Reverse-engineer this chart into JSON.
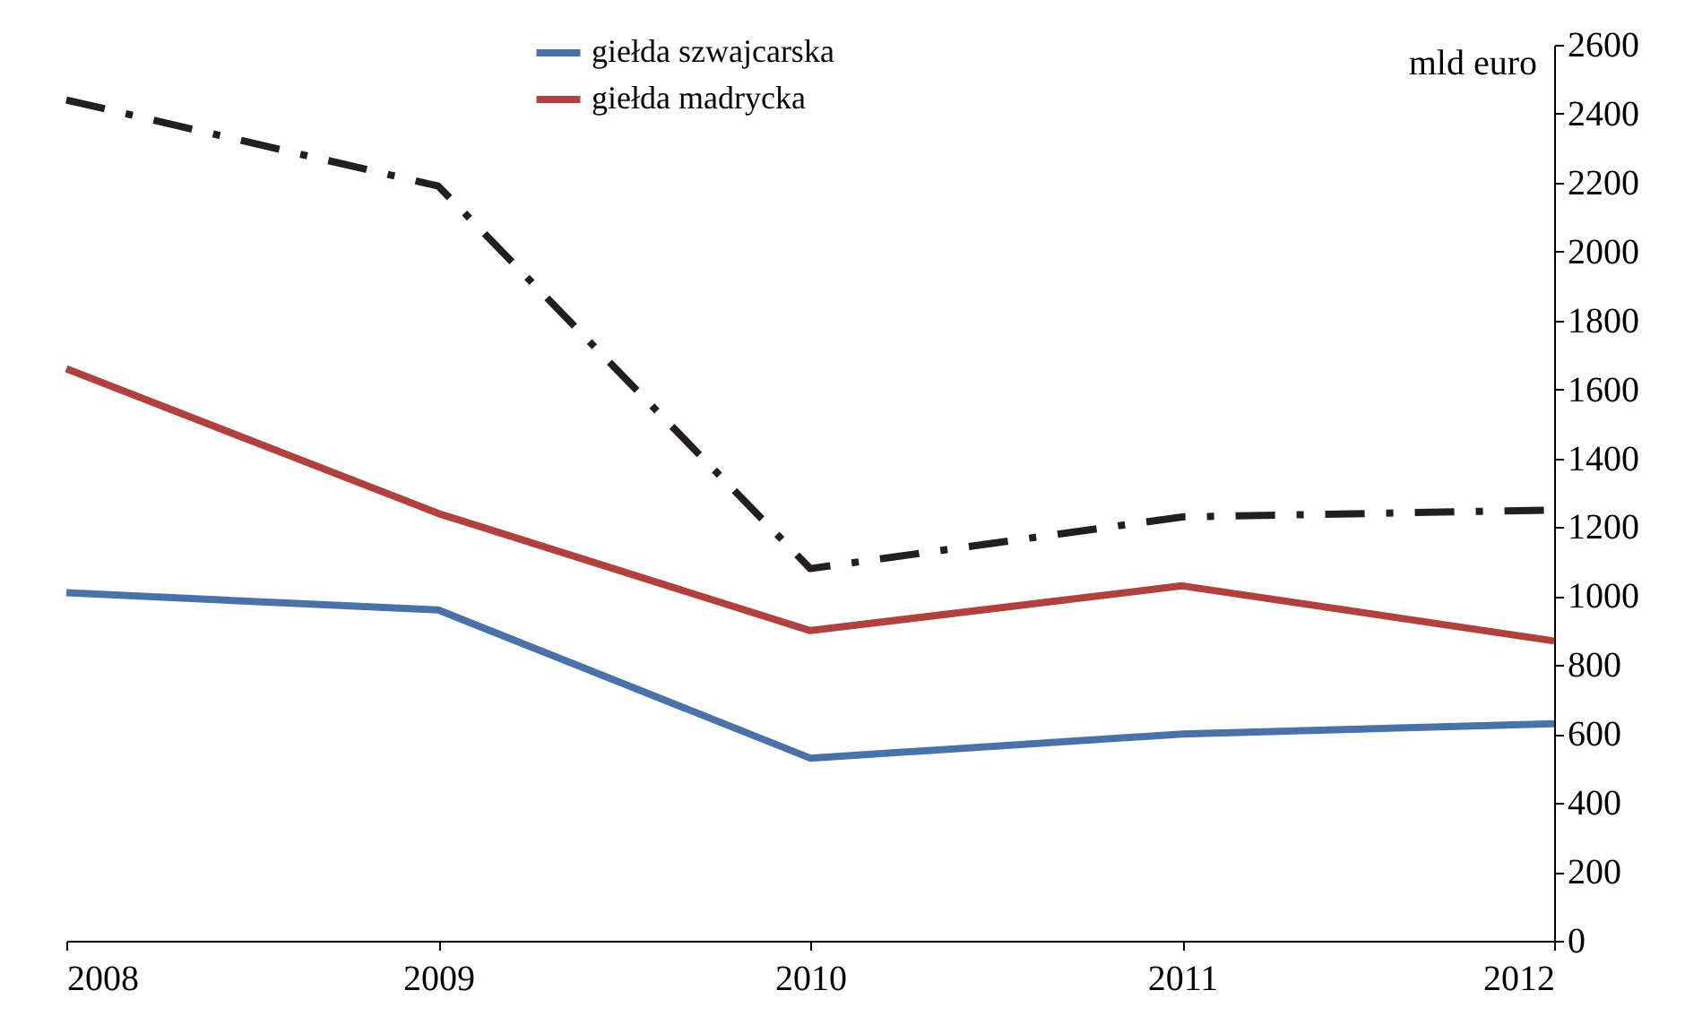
{
  "chart_data": {
    "type": "line",
    "ylabel": "mld euro",
    "x": [
      2008,
      2009,
      2010,
      2011,
      2012
    ],
    "xlim": [
      2008,
      2012
    ],
    "xticks": [
      2008,
      2009,
      2010,
      2011,
      2012
    ],
    "ylim": [
      0,
      2600
    ],
    "yticks": [
      0,
      200,
      400,
      600,
      800,
      1000,
      1200,
      1400,
      1600,
      1800,
      2000,
      2200,
      2400,
      2600
    ],
    "grid": false,
    "legend": "top",
    "marker": "none",
    "series": [
      {
        "color": "#231f20",
        "line_style": "dashed",
        "values": [
          2440,
          2190,
          1080,
          1230,
          1250
        ]
      },
      {
        "name": "giełda szwajcarska",
        "color": "#4a72a8",
        "line_style": "solid",
        "values": [
          1010,
          960,
          530,
          600,
          630
        ]
      },
      {
        "name": "giełda madrycka",
        "color": "#b0413e",
        "line_style": "solid",
        "values": [
          1660,
          1240,
          900,
          1030,
          870
        ]
      }
    ]
  }
}
